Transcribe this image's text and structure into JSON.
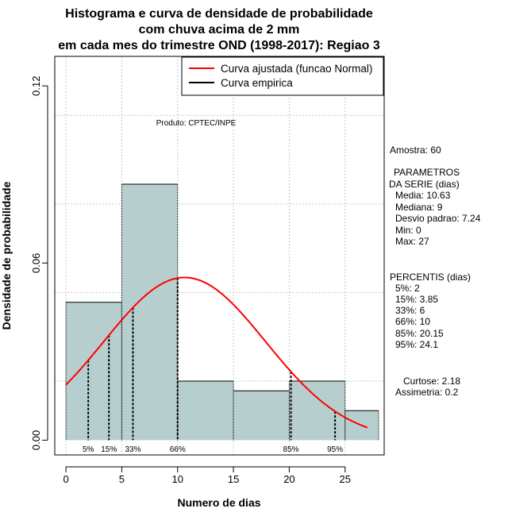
{
  "title_lines": [
    "Histograma e curva de densidade de probabilidade",
    "com chuva acima de 2 mm",
    "em cada mes do trimestre OND (1998-2017): Regiao 3"
  ],
  "product_label": "Produto: CPTEC/INPE",
  "colors": {
    "bar_fill": "#b7cecf",
    "fitted_curve": "#ff0000",
    "empirical_curve": "#000000",
    "grid": "#c8c8c8"
  },
  "chart_data": {
    "type": "bar",
    "subtype": "histogram with density curves",
    "xlabel": "Numero de dias",
    "ylabel": "Densidade de probabilidade",
    "xlim": [
      -1,
      28.5
    ],
    "ylim": [
      -0.005,
      0.13
    ],
    "xticks": [
      0,
      5,
      10,
      15,
      20,
      25
    ],
    "yticks": [
      0.0,
      0.06,
      0.12
    ],
    "ytick_labels": [
      "0.00",
      "0.06",
      "0.12"
    ],
    "grid": true,
    "bins": [
      {
        "start": 0,
        "end": 5,
        "density": 0.0467
      },
      {
        "start": 5,
        "end": 10,
        "density": 0.0867
      },
      {
        "start": 10,
        "end": 15,
        "density": 0.02
      },
      {
        "start": 15,
        "end": 20,
        "density": 0.0167
      },
      {
        "start": 20,
        "end": 25,
        "density": 0.02
      },
      {
        "start": 25,
        "end": 28,
        "density": 0.01
      }
    ],
    "normal_fit": {
      "mean": 10.63,
      "sd": 7.24,
      "x_range": [
        0,
        27
      ]
    },
    "percentile_marks": [
      {
        "x": 2,
        "label": "5%"
      },
      {
        "x": 3.85,
        "label": "15%"
      },
      {
        "x": 6,
        "label": "33%"
      },
      {
        "x": 10,
        "label": "66%"
      },
      {
        "x": 20.15,
        "label": "85%"
      },
      {
        "x": 24.1,
        "label": "95%"
      }
    ],
    "legend": {
      "position": "top-right",
      "entries": [
        {
          "label": "Curva ajustada (funcao Normal)",
          "color": "#ff0000"
        },
        {
          "label": "Curva empirica",
          "color": "#000000"
        }
      ]
    }
  },
  "side_panel": {
    "sample": "Amostra: 60",
    "params_title_1": "PARAMETROS",
    "params_title_2": "DA SERIE (dias)",
    "params": [
      "Media: 10.63",
      "Mediana: 9",
      "Desvio padrao: 7.24",
      "Min: 0",
      "Max: 27"
    ],
    "percentis_title": "PERCENTIS (dias)",
    "percentis": [
      "5%: 2",
      "15%: 3.85",
      "33%: 6",
      "66%: 10",
      "85%: 20.15",
      "95%: 24.1"
    ],
    "curtose": "Curtose: 2.18",
    "assimetria": "Assimetria: 0.2"
  }
}
